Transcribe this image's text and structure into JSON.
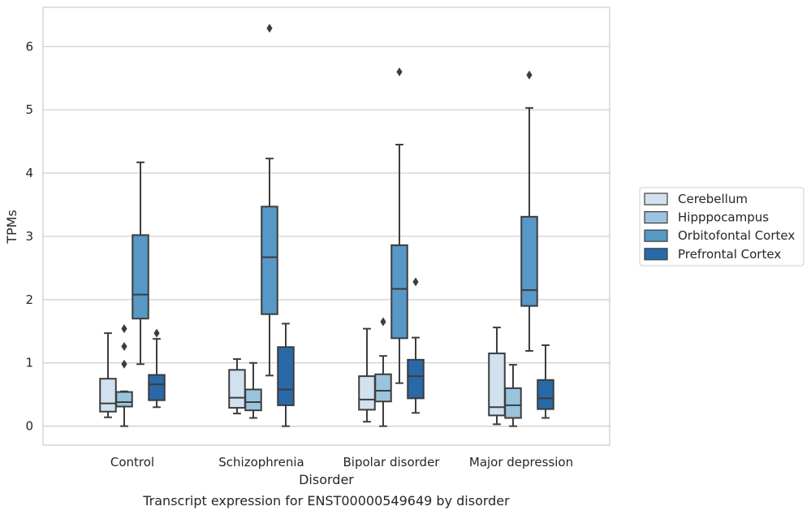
{
  "chart_data": {
    "type": "boxplot",
    "title": "Transcript expression for ENST00000549649 by disorder",
    "xlabel": "Disorder",
    "ylabel": "TPMs",
    "ylim": [
      -0.3,
      6.62
    ],
    "yticks": [
      0,
      1,
      2,
      3,
      4,
      5,
      6
    ],
    "grid": "horizontal",
    "legend_position": "right",
    "categories": [
      "Control",
      "Schizophrenia",
      "Bipolar disorder",
      "Major depression"
    ],
    "series": [
      {
        "name": "Cerebellum",
        "color": "#d1e1ef",
        "boxes": [
          {
            "whisker_low": 0.14,
            "q1": 0.23,
            "median": 0.36,
            "q3": 0.75,
            "whisker_high": 1.47,
            "outliers": []
          },
          {
            "whisker_low": 0.2,
            "q1": 0.29,
            "median": 0.45,
            "q3": 0.89,
            "whisker_high": 1.06,
            "outliers": []
          },
          {
            "whisker_low": 0.07,
            "q1": 0.26,
            "median": 0.42,
            "q3": 0.79,
            "whisker_high": 1.54,
            "outliers": []
          },
          {
            "whisker_low": 0.03,
            "q1": 0.17,
            "median": 0.3,
            "q3": 1.15,
            "whisker_high": 1.56,
            "outliers": []
          }
        ]
      },
      {
        "name": "Hipppocampus",
        "color": "#9ac4dd",
        "boxes": [
          {
            "whisker_low": 0.0,
            "q1": 0.31,
            "median": 0.38,
            "q3": 0.54,
            "whisker_high": 0.55,
            "outliers": [
              0.98,
              1.26,
              1.54
            ]
          },
          {
            "whisker_low": 0.13,
            "q1": 0.25,
            "median": 0.38,
            "q3": 0.58,
            "whisker_high": 1.0,
            "outliers": []
          },
          {
            "whisker_low": 0.0,
            "q1": 0.39,
            "median": 0.56,
            "q3": 0.82,
            "whisker_high": 1.11,
            "outliers": [
              1.65
            ]
          },
          {
            "whisker_low": 0.0,
            "q1": 0.13,
            "median": 0.33,
            "q3": 0.6,
            "whisker_high": 0.97,
            "outliers": []
          }
        ]
      },
      {
        "name": "Orbitofontal Cortex",
        "color": "#5798c6",
        "boxes": [
          {
            "whisker_low": 0.98,
            "q1": 1.7,
            "median": 2.08,
            "q3": 3.02,
            "whisker_high": 4.17,
            "outliers": []
          },
          {
            "whisker_low": 0.8,
            "q1": 1.77,
            "median": 2.67,
            "q3": 3.47,
            "whisker_high": 4.23,
            "outliers": [
              6.29
            ]
          },
          {
            "whisker_low": 0.68,
            "q1": 1.39,
            "median": 2.17,
            "q3": 2.86,
            "whisker_high": 4.45,
            "outliers": [
              5.6
            ]
          },
          {
            "whisker_low": 1.19,
            "q1": 1.9,
            "median": 2.15,
            "q3": 3.31,
            "whisker_high": 5.03,
            "outliers": [
              5.55
            ]
          }
        ]
      },
      {
        "name": "Prefrontal Cortex",
        "color": "#2a69a7",
        "boxes": [
          {
            "whisker_low": 0.3,
            "q1": 0.41,
            "median": 0.66,
            "q3": 0.81,
            "whisker_high": 1.38,
            "outliers": [
              1.47
            ]
          },
          {
            "whisker_low": 0.0,
            "q1": 0.33,
            "median": 0.58,
            "q3": 1.25,
            "whisker_high": 1.62,
            "outliers": []
          },
          {
            "whisker_low": 0.21,
            "q1": 0.44,
            "median": 0.79,
            "q3": 1.05,
            "whisker_high": 1.4,
            "outliers": [
              2.28
            ]
          },
          {
            "whisker_low": 0.13,
            "q1": 0.27,
            "median": 0.44,
            "q3": 0.73,
            "whisker_high": 1.28,
            "outliers": []
          }
        ]
      }
    ]
  }
}
